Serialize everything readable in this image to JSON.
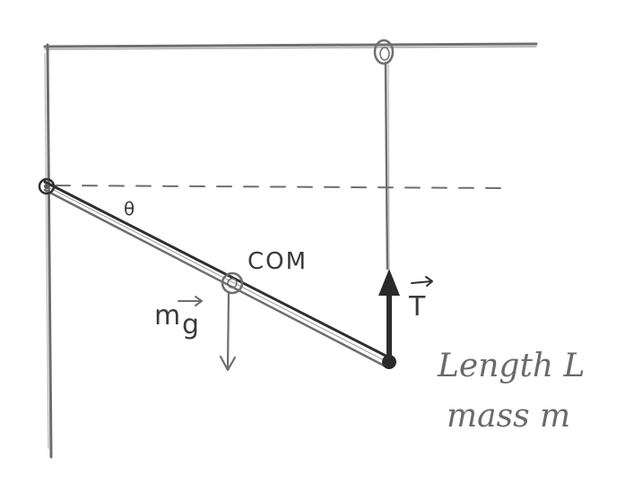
{
  "labels": {
    "angle": "θ",
    "com": "COM",
    "weight_m": "m",
    "weight_g": "g",
    "tension": "T",
    "length": "Length L",
    "mass": "mass m"
  },
  "colors": {
    "pencil": "#6e6e6e",
    "dark": "#2e2e2e",
    "paper": "#ffffff"
  }
}
